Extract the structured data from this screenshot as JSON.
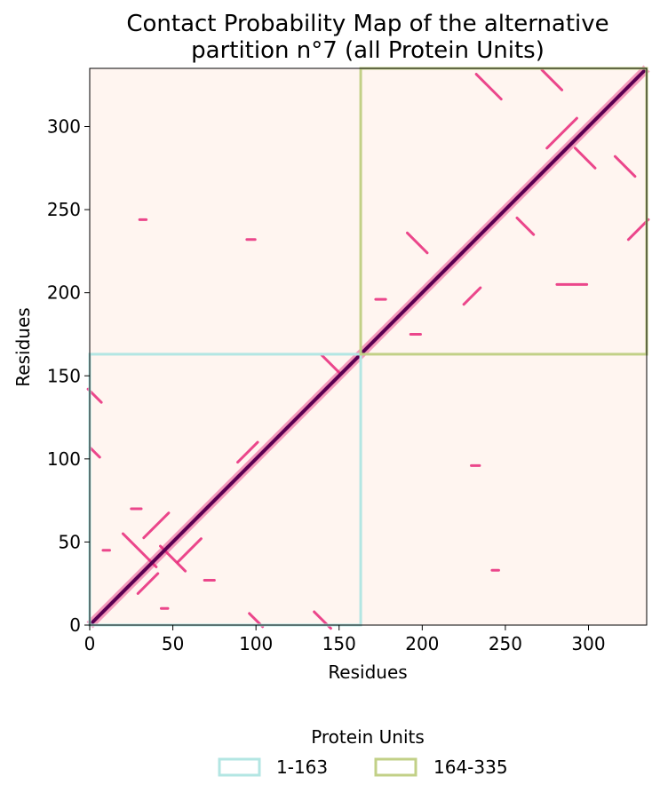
{
  "chart_data": {
    "type": "heatmap",
    "title_line1": "Contact Probability Map of the alternative",
    "title_line2": "partition n°7 (all Protein Units)",
    "xlabel": "Residues",
    "ylabel": "Residues",
    "xlim": [
      0,
      335
    ],
    "ylim": [
      0,
      335
    ],
    "xticks": [
      0,
      50,
      100,
      150,
      200,
      250,
      300
    ],
    "yticks": [
      0,
      50,
      100,
      150,
      200,
      250,
      300
    ],
    "xtick_labels": [
      "0",
      "50",
      "100",
      "150",
      "200",
      "250",
      "300"
    ],
    "ytick_labels": [
      "0",
      "50",
      "100",
      "150",
      "200",
      "250",
      "300"
    ],
    "colormap": {
      "low": "#fff5f0",
      "mid": "#e8287a",
      "high": "#5a0052"
    },
    "diagonal": true,
    "contact_features": [
      {
        "x": 30,
        "y": 45,
        "length": 20,
        "dir": -1
      },
      {
        "x": 40,
        "y": 60,
        "length": 15,
        "dir": 1
      },
      {
        "x": 50,
        "y": 40,
        "length": 15,
        "dir": -1
      },
      {
        "x": 60,
        "y": 45,
        "length": 14,
        "dir": 1
      },
      {
        "x": 35,
        "y": 25,
        "length": 12,
        "dir": 1
      },
      {
        "x": 28,
        "y": 70,
        "length": 6,
        "dir": 0
      },
      {
        "x": 72,
        "y": 27,
        "length": 6,
        "dir": 0
      },
      {
        "x": 10,
        "y": 45,
        "length": 4,
        "dir": 0
      },
      {
        "x": 45,
        "y": 10,
        "length": 4,
        "dir": 0
      },
      {
        "x": 100,
        "y": 3,
        "length": 8,
        "dir": -1
      },
      {
        "x": 140,
        "y": 3,
        "length": 10,
        "dir": -1
      },
      {
        "x": 3,
        "y": 104,
        "length": 6,
        "dir": -1
      },
      {
        "x": 3,
        "y": 138,
        "length": 8,
        "dir": -1
      },
      {
        "x": 95,
        "y": 104,
        "length": 12,
        "dir": 1
      },
      {
        "x": 145,
        "y": 157,
        "length": 12,
        "dir": -1
      },
      {
        "x": 32,
        "y": 244,
        "length": 4,
        "dir": 0
      },
      {
        "x": 97,
        "y": 232,
        "length": 5,
        "dir": 0
      },
      {
        "x": 232,
        "y": 96,
        "length": 5,
        "dir": 0
      },
      {
        "x": 244,
        "y": 33,
        "length": 4,
        "dir": 0
      },
      {
        "x": 175,
        "y": 196,
        "length": 6,
        "dir": 0
      },
      {
        "x": 196,
        "y": 175,
        "length": 6,
        "dir": 0
      },
      {
        "x": 197,
        "y": 230,
        "length": 12,
        "dir": -1
      },
      {
        "x": 230,
        "y": 198,
        "length": 10,
        "dir": 1
      },
      {
        "x": 240,
        "y": 324,
        "length": 15,
        "dir": -1
      },
      {
        "x": 278,
        "y": 328,
        "length": 12,
        "dir": -1
      },
      {
        "x": 284,
        "y": 296,
        "length": 18,
        "dir": 1
      },
      {
        "x": 298,
        "y": 281,
        "length": 12,
        "dir": -1
      },
      {
        "x": 322,
        "y": 276,
        "length": 12,
        "dir": -1
      },
      {
        "x": 330,
        "y": 238,
        "length": 12,
        "dir": 1
      },
      {
        "x": 262,
        "y": 240,
        "length": 10,
        "dir": -1
      },
      {
        "x": 290,
        "y": 205,
        "length": 18,
        "dir": 0
      }
    ],
    "legend": {
      "title": "Protein Units",
      "placement": "below",
      "entries": [
        {
          "label": "1-163",
          "range": [
            1,
            163
          ],
          "color": "#b3e6e3"
        },
        {
          "label": "164-335",
          "range": [
            164,
            335
          ],
          "color": "#c2d087"
        }
      ]
    }
  }
}
